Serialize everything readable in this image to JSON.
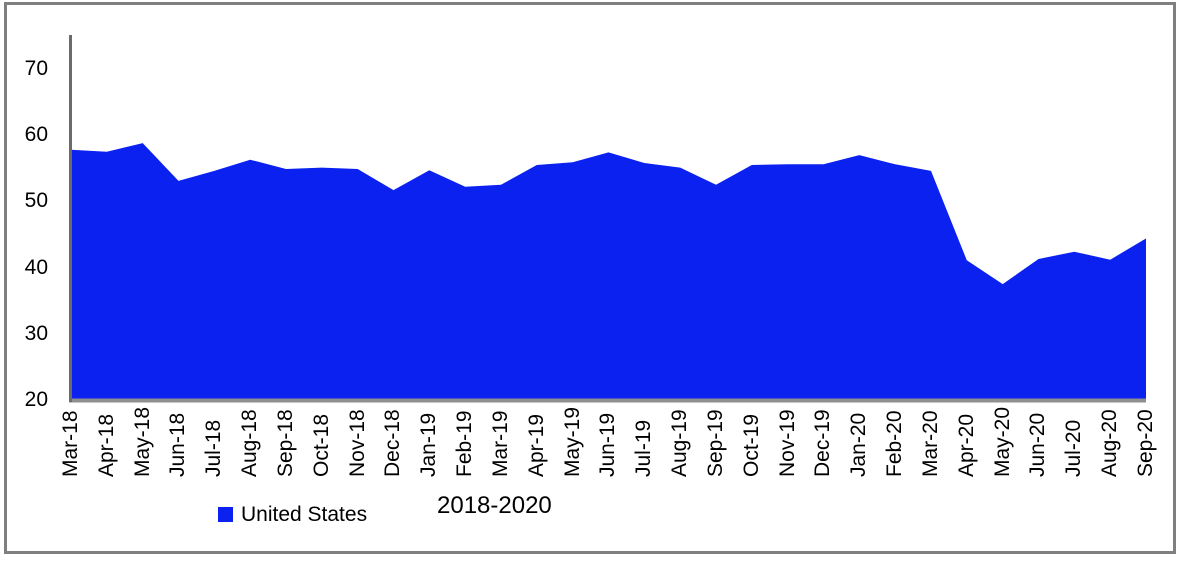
{
  "chart_data": {
    "type": "area",
    "title": "",
    "categories": [
      "Mar-18",
      "Apr-18",
      "May-18",
      "Jun-18",
      "Jul-18",
      "Aug-18",
      "Sep-18",
      "Oct-18",
      "Nov-18",
      "Dec-18",
      "Jan-19",
      "Feb-19",
      "Mar-19",
      "Apr-19",
      "May-19",
      "Jun-19",
      "Jul-19",
      "Aug-19",
      "Sep-19",
      "Oct-19",
      "Nov-19",
      "Dec-19",
      "Jan-20",
      "Feb-20",
      "Mar-20",
      "Apr-20",
      "May-20",
      "Jun-20",
      "Jul-20",
      "Aug-20",
      "Sep-20"
    ],
    "series": [
      {
        "name": "United States",
        "values": [
          57.8,
          57.5,
          58.8,
          53.1,
          54.6,
          56.3,
          54.9,
          55.1,
          54.9,
          51.7,
          54.7,
          52.2,
          52.5,
          55.5,
          55.9,
          57.4,
          55.8,
          55.1,
          52.5,
          55.5,
          55.6,
          55.6,
          57.0,
          55.6,
          54.6,
          41.1,
          37.5,
          41.3,
          42.4,
          41.2,
          44.4
        ]
      }
    ],
    "xlabel": "2018-2020",
    "ylabel": "",
    "ylim": [
      20,
      75
    ],
    "yticks": [
      20,
      30,
      40,
      50,
      60,
      70
    ],
    "grid": "off",
    "legend_position": "bottom",
    "area_color": "#0a21f0",
    "axis_color": "#6b6b6b",
    "baseline_color": "#8f8f8f"
  },
  "legend": {
    "label": "United States",
    "swatch_color": "#0a21f0"
  },
  "axis_note": "2018-2020",
  "frame": {
    "border_color": "#7f7f7f"
  }
}
